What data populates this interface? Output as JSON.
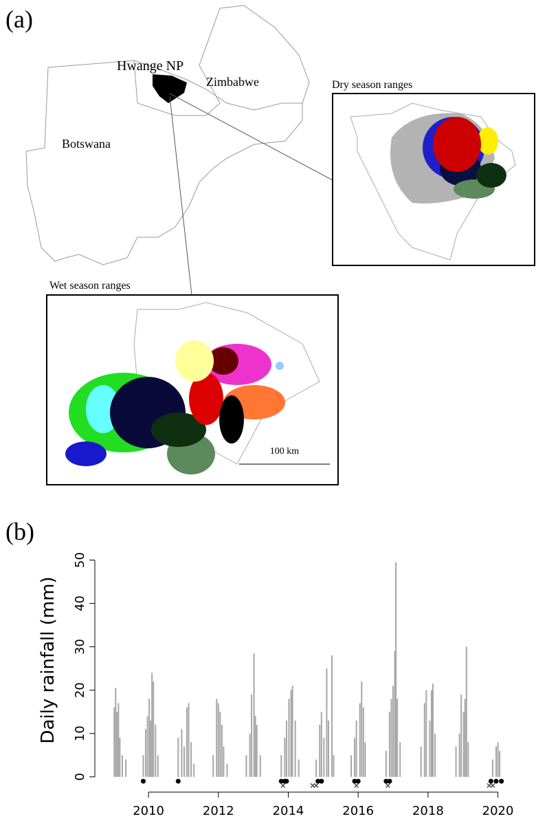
{
  "map": {
    "panel_label": "(a)",
    "park": "Hwange NP",
    "country_1": "Zimbabwe",
    "country_2": "Botswana",
    "dry_title": "Dry season ranges",
    "wet_title": "Wet season ranges",
    "scale_bar": "100 km"
  },
  "chart_data": {
    "type": "bar",
    "panel_label": "(b)",
    "y_label": "Daily rainfall (mm)",
    "color": "#a6a6a6",
    "x": [
      2009.02,
      2009.06,
      2009.1,
      2009.14,
      2009.18,
      2009.25,
      2009.35,
      2009.85,
      2009.92,
      2009.97,
      2010.02,
      2010.06,
      2010.1,
      2010.14,
      2010.2,
      2010.27,
      2010.85,
      2010.95,
      2011.02,
      2011.1,
      2011.15,
      2011.22,
      2011.3,
      2011.85,
      2011.95,
      2012.0,
      2012.05,
      2012.1,
      2012.15,
      2012.25,
      2012.8,
      2012.9,
      2012.95,
      2013.02,
      2013.06,
      2013.1,
      2013.2,
      2013.8,
      2013.9,
      2013.95,
      2014.02,
      2014.08,
      2014.12,
      2014.2,
      2014.3,
      2014.8,
      2014.9,
      2014.95,
      2015.02,
      2015.1,
      2015.15,
      2015.25,
      2015.3,
      2015.8,
      2015.9,
      2015.95,
      2016.05,
      2016.1,
      2016.15,
      2016.2,
      2016.8,
      2016.9,
      2016.95,
      2017.0,
      2017.05,
      2017.08,
      2017.12,
      2017.2,
      2017.8,
      2017.9,
      2017.95,
      2018.05,
      2018.1,
      2018.14,
      2018.2,
      2018.8,
      2018.9,
      2018.95,
      2019.02,
      2019.06,
      2019.1,
      2019.15,
      2019.85,
      2019.95,
      2020.0,
      2020.05
    ],
    "values": [
      16,
      20.5,
      15,
      17,
      9,
      5,
      4,
      5,
      11,
      14,
      18,
      13,
      24,
      22,
      12,
      5,
      9,
      11,
      7,
      16,
      17,
      8,
      3,
      5,
      18,
      17,
      15,
      12,
      7,
      3,
      5,
      10,
      19,
      28.5,
      14,
      12,
      5,
      5,
      9,
      13,
      18,
      20,
      21,
      13,
      4,
      4,
      12,
      15,
      9,
      25,
      13,
      28,
      5,
      5,
      9,
      13,
      17,
      22,
      16,
      8,
      6,
      15,
      18,
      21,
      29,
      49.5,
      18,
      8,
      7,
      17,
      20,
      13,
      20,
      21.5,
      10,
      7,
      10,
      19,
      15,
      18,
      30,
      8,
      4,
      7,
      8,
      6
    ],
    "dots": {
      "x": [
        2009.85,
        2010.85,
        2013.8,
        2013.9,
        2013.95,
        2014.85,
        2014.95,
        2015.9,
        2016.0,
        2016.8,
        2016.9,
        2019.8,
        2019.95,
        2020.1
      ],
      "values": [
        -1,
        -1,
        -1,
        -1,
        -1,
        -1,
        -1,
        -1,
        -1,
        -1,
        -1,
        -1,
        -1,
        -1
      ],
      "color": "#000000"
    },
    "crosses": {
      "x": [
        2013.85,
        2014.7,
        2014.8,
        2015.95,
        2016.85,
        2019.75,
        2019.85
      ],
      "values": [
        -2,
        -2,
        -2,
        -2,
        -2,
        -2,
        -2
      ],
      "color": "#333333"
    },
    "xlim": [
      2008.7,
      2020.5
    ],
    "ylim": [
      -3.2,
      52.3
    ],
    "xticks": [
      2010,
      2012,
      2014,
      2016,
      2018,
      2020
    ],
    "yticks": [
      0,
      10,
      20,
      30,
      40,
      50
    ]
  }
}
